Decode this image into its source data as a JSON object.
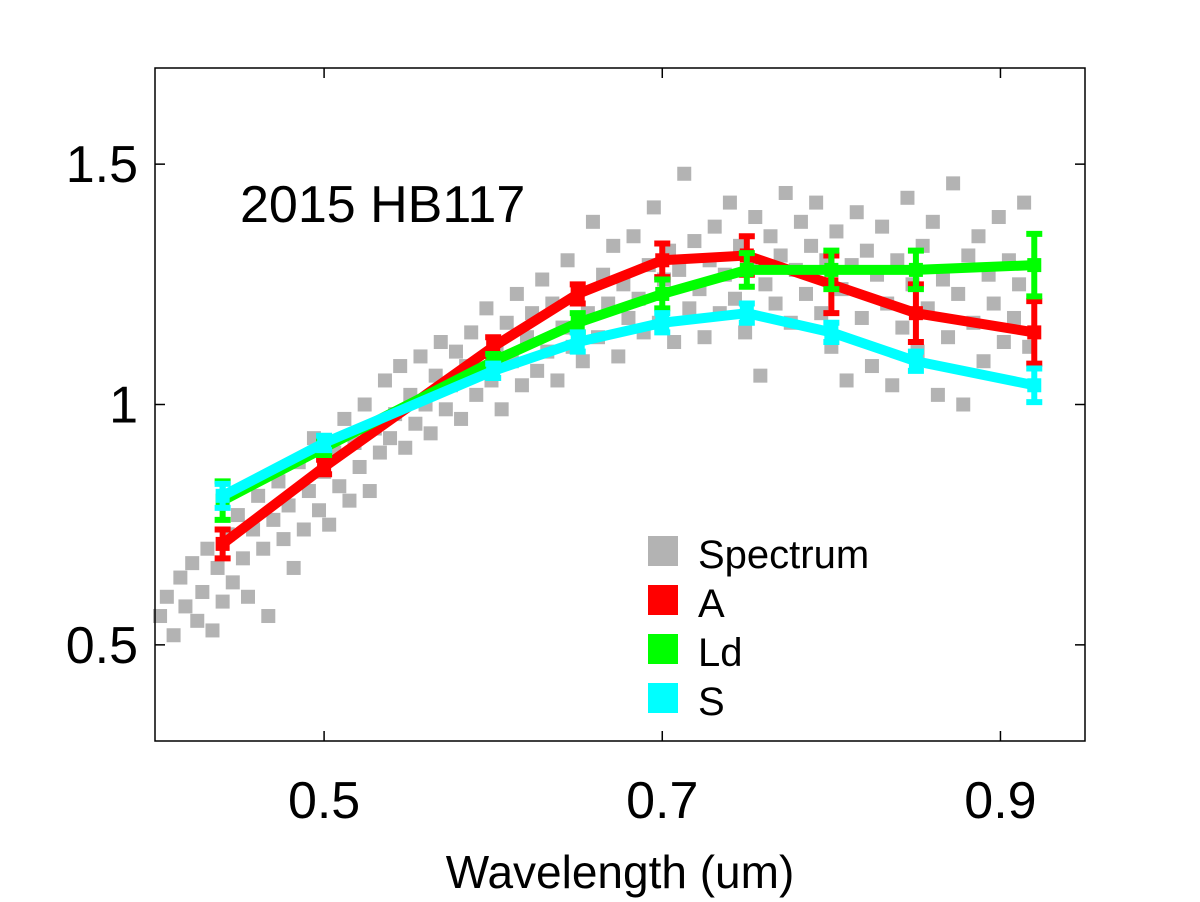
{
  "chart_data": {
    "type": "line",
    "title": "",
    "annotation": "2015 HB117",
    "xlabel": "Wavelength (um)",
    "ylabel": "",
    "xlim": [
      0.4,
      0.95
    ],
    "ylim": [
      0.3,
      1.7
    ],
    "xticks": [
      0.5,
      0.7,
      0.9
    ],
    "xtick_labels": [
      "0.5",
      "0.7",
      "0.9"
    ],
    "yticks": [
      0.5,
      1.0,
      1.5
    ],
    "ytick_labels": [
      "0.5",
      "1",
      "1.5"
    ],
    "grid": false,
    "legend_position": "bottom-right",
    "scatter": {
      "name": "Spectrum",
      "color": "#b3b3b3",
      "points": [
        [
          0.403,
          0.56
        ],
        [
          0.407,
          0.6
        ],
        [
          0.411,
          0.52
        ],
        [
          0.415,
          0.64
        ],
        [
          0.418,
          0.58
        ],
        [
          0.422,
          0.67
        ],
        [
          0.425,
          0.55
        ],
        [
          0.428,
          0.61
        ],
        [
          0.431,
          0.7
        ],
        [
          0.434,
          0.53
        ],
        [
          0.437,
          0.66
        ],
        [
          0.44,
          0.59
        ],
        [
          0.443,
          0.73
        ],
        [
          0.446,
          0.63
        ],
        [
          0.449,
          0.77
        ],
        [
          0.452,
          0.68
        ],
        [
          0.455,
          0.6
        ],
        [
          0.458,
          0.74
        ],
        [
          0.461,
          0.81
        ],
        [
          0.464,
          0.7
        ],
        [
          0.467,
          0.56
        ],
        [
          0.47,
          0.76
        ],
        [
          0.473,
          0.84
        ],
        [
          0.476,
          0.72
        ],
        [
          0.479,
          0.79
        ],
        [
          0.482,
          0.66
        ],
        [
          0.485,
          0.88
        ],
        [
          0.488,
          0.74
        ],
        [
          0.491,
          0.82
        ],
        [
          0.494,
          0.93
        ],
        [
          0.497,
          0.78
        ],
        [
          0.5,
          0.86
        ],
        [
          0.503,
          0.75
        ],
        [
          0.506,
          0.9
        ],
        [
          0.509,
          0.83
        ],
        [
          0.512,
          0.97
        ],
        [
          0.515,
          0.8
        ],
        [
          0.518,
          0.92
        ],
        [
          0.521,
          0.87
        ],
        [
          0.524,
          1.0
        ],
        [
          0.527,
          0.82
        ],
        [
          0.53,
          0.95
        ],
        [
          0.533,
          0.9
        ],
        [
          0.536,
          1.05
        ],
        [
          0.539,
          0.93
        ],
        [
          0.542,
          0.98
        ],
        [
          0.545,
          1.08
        ],
        [
          0.548,
          0.91
        ],
        [
          0.551,
          1.02
        ],
        [
          0.554,
          0.96
        ],
        [
          0.557,
          1.1
        ],
        [
          0.56,
          1.0
        ],
        [
          0.563,
          0.94
        ],
        [
          0.566,
          1.06
        ],
        [
          0.569,
          1.13
        ],
        [
          0.572,
          0.99
        ],
        [
          0.575,
          1.04
        ],
        [
          0.578,
          1.11
        ],
        [
          0.581,
          0.97
        ],
        [
          0.584,
          1.08
        ],
        [
          0.587,
          1.15
        ],
        [
          0.59,
          1.02
        ],
        [
          0.593,
          1.07
        ],
        [
          0.596,
          1.2
        ],
        [
          0.599,
          1.05
        ],
        [
          0.602,
          1.12
        ],
        [
          0.605,
          0.99
        ],
        [
          0.608,
          1.17
        ],
        [
          0.611,
          1.09
        ],
        [
          0.614,
          1.23
        ],
        [
          0.617,
          1.04
        ],
        [
          0.62,
          1.14
        ],
        [
          0.623,
          1.19
        ],
        [
          0.626,
          1.07
        ],
        [
          0.629,
          1.26
        ],
        [
          0.632,
          1.11
        ],
        [
          0.635,
          1.21
        ],
        [
          0.638,
          1.05
        ],
        [
          0.641,
          1.16
        ],
        [
          0.644,
          1.3
        ],
        [
          0.647,
          1.12
        ],
        [
          0.65,
          1.24
        ],
        [
          0.653,
          1.09
        ],
        [
          0.656,
          1.19
        ],
        [
          0.659,
          1.38
        ],
        [
          0.662,
          1.14
        ],
        [
          0.665,
          1.27
        ],
        [
          0.668,
          1.21
        ],
        [
          0.671,
          1.33
        ],
        [
          0.674,
          1.1
        ],
        [
          0.677,
          1.25
        ],
        [
          0.68,
          1.18
        ],
        [
          0.683,
          1.35
        ],
        [
          0.686,
          1.22
        ],
        [
          0.689,
          1.15
        ],
        [
          0.692,
          1.29
        ],
        [
          0.695,
          1.41
        ],
        [
          0.698,
          1.17
        ],
        [
          0.701,
          1.26
        ],
        [
          0.704,
          1.32
        ],
        [
          0.707,
          1.13
        ],
        [
          0.71,
          1.28
        ],
        [
          0.713,
          1.48
        ],
        [
          0.716,
          1.2
        ],
        [
          0.719,
          1.34
        ],
        [
          0.722,
          1.24
        ],
        [
          0.725,
          1.14
        ],
        [
          0.728,
          1.3
        ],
        [
          0.731,
          1.37
        ],
        [
          0.734,
          1.19
        ],
        [
          0.737,
          1.27
        ],
        [
          0.74,
          1.42
        ],
        [
          0.743,
          1.22
        ],
        [
          0.746,
          1.33
        ],
        [
          0.749,
          1.15
        ],
        [
          0.752,
          1.29
        ],
        [
          0.755,
          1.39
        ],
        [
          0.758,
          1.06
        ],
        [
          0.761,
          1.25
        ],
        [
          0.764,
          1.35
        ],
        [
          0.767,
          1.21
        ],
        [
          0.77,
          1.31
        ],
        [
          0.773,
          1.44
        ],
        [
          0.776,
          1.17
        ],
        [
          0.779,
          1.28
        ],
        [
          0.782,
          1.38
        ],
        [
          0.785,
          1.23
        ],
        [
          0.788,
          1.33
        ],
        [
          0.791,
          1.42
        ],
        [
          0.794,
          1.19
        ],
        [
          0.797,
          1.3
        ],
        [
          0.8,
          1.12
        ],
        [
          0.803,
          1.36
        ],
        [
          0.806,
          1.24
        ],
        [
          0.809,
          1.05
        ],
        [
          0.812,
          1.29
        ],
        [
          0.815,
          1.4
        ],
        [
          0.818,
          1.18
        ],
        [
          0.821,
          1.32
        ],
        [
          0.824,
          1.08
        ],
        [
          0.827,
          1.27
        ],
        [
          0.83,
          1.37
        ],
        [
          0.833,
          1.21
        ],
        [
          0.836,
          1.04
        ],
        [
          0.839,
          1.3
        ],
        [
          0.842,
          1.16
        ],
        [
          0.845,
          1.43
        ],
        [
          0.848,
          1.25
        ],
        [
          0.851,
          1.11
        ],
        [
          0.854,
          1.33
        ],
        [
          0.857,
          1.2
        ],
        [
          0.86,
          1.38
        ],
        [
          0.863,
          1.02
        ],
        [
          0.866,
          1.26
        ],
        [
          0.869,
          1.14
        ],
        [
          0.872,
          1.46
        ],
        [
          0.875,
          1.23
        ],
        [
          0.878,
          1.0
        ],
        [
          0.881,
          1.31
        ],
        [
          0.884,
          1.17
        ],
        [
          0.887,
          1.35
        ],
        [
          0.89,
          1.09
        ],
        [
          0.893,
          1.27
        ],
        [
          0.896,
          1.21
        ],
        [
          0.899,
          1.39
        ],
        [
          0.902,
          1.13
        ],
        [
          0.905,
          1.3
        ],
        [
          0.908,
          1.18
        ],
        [
          0.911,
          1.25
        ],
        [
          0.914,
          1.42
        ],
        [
          0.917,
          1.12
        ]
      ]
    },
    "series": [
      {
        "name": "A",
        "color": "#ff0000",
        "x": [
          0.44,
          0.5,
          0.6,
          0.65,
          0.7,
          0.75,
          0.8,
          0.85,
          0.92
        ],
        "y": [
          0.71,
          0.87,
          1.12,
          1.23,
          1.3,
          1.31,
          1.25,
          1.19,
          1.15
        ],
        "err": [
          0.03,
          0.015,
          0.02,
          0.02,
          0.035,
          0.04,
          0.06,
          0.06,
          0.065
        ]
      },
      {
        "name": "Ld",
        "color": "#00ff00",
        "x": [
          0.44,
          0.5,
          0.6,
          0.65,
          0.7,
          0.75,
          0.8,
          0.85,
          0.92
        ],
        "y": [
          0.8,
          0.91,
          1.09,
          1.17,
          1.23,
          1.28,
          1.28,
          1.28,
          1.29
        ],
        "err": [
          0.04,
          0.015,
          0.015,
          0.02,
          0.03,
          0.035,
          0.04,
          0.04,
          0.065
        ]
      },
      {
        "name": "S",
        "color": "#00ffff",
        "x": [
          0.44,
          0.5,
          0.6,
          0.65,
          0.7,
          0.75,
          0.8,
          0.85,
          0.92
        ],
        "y": [
          0.81,
          0.92,
          1.07,
          1.13,
          1.17,
          1.19,
          1.15,
          1.09,
          1.04
        ],
        "err": [
          0.025,
          0.015,
          0.015,
          0.02,
          0.02,
          0.02,
          0.02,
          0.02,
          0.035
        ]
      }
    ]
  }
}
